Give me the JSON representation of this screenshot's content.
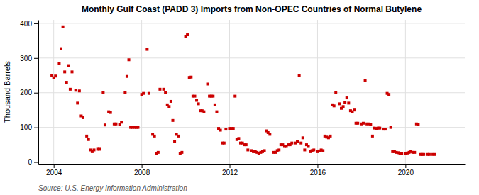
{
  "chart_data": {
    "type": "scatter",
    "title": "Monthly Gulf Coast (PADD 3) Imports from Non-OPEC Countries of Normal Butylene",
    "ylabel": "Thousand Barrels",
    "annotations": [
      "Source: U.S. Energy Information Administration"
    ],
    "color": "#CC0000",
    "marker": "square",
    "grid": true,
    "xlim": [
      2003.3,
      2022.7
    ],
    "ylim": [
      -5,
      410
    ],
    "xticks": [
      2004,
      2008,
      2012,
      2016,
      2020
    ],
    "yticks": [
      0,
      100,
      200,
      300,
      400
    ],
    "x": [
      2003.917,
      2004.0,
      2004.083,
      2004.25,
      2004.333,
      2004.417,
      2004.5,
      2004.583,
      2004.667,
      2004.75,
      2004.833,
      2005.0,
      2005.083,
      2005.167,
      2005.25,
      2005.333,
      2005.5,
      2005.583,
      2005.667,
      2005.75,
      2005.833,
      2006.0,
      2006.083,
      2006.25,
      2006.333,
      2006.5,
      2006.583,
      2006.75,
      2006.833,
      2007.0,
      2007.083,
      2007.25,
      2007.333,
      2007.417,
      2007.5,
      2007.583,
      2007.667,
      2007.75,
      2007.833,
      2008.0,
      2008.083,
      2008.25,
      2008.333,
      2008.5,
      2008.583,
      2008.667,
      2008.75,
      2008.833,
      2009.0,
      2009.083,
      2009.167,
      2009.25,
      2009.333,
      2009.417,
      2009.5,
      2009.583,
      2009.667,
      2009.75,
      2009.833,
      2010.0,
      2010.083,
      2010.167,
      2010.25,
      2010.333,
      2010.417,
      2010.5,
      2010.583,
      2010.667,
      2010.75,
      2010.833,
      2011.0,
      2011.083,
      2011.167,
      2011.25,
      2011.333,
      2011.417,
      2011.5,
      2011.583,
      2011.667,
      2011.75,
      2011.833,
      2012.0,
      2012.083,
      2012.167,
      2012.25,
      2012.333,
      2012.417,
      2012.5,
      2012.583,
      2012.667,
      2012.75,
      2012.833,
      2013.0,
      2013.083,
      2013.167,
      2013.25,
      2013.333,
      2013.417,
      2013.5,
      2013.583,
      2013.667,
      2013.75,
      2013.833,
      2014.0,
      2014.083,
      2014.167,
      2014.25,
      2014.333,
      2014.417,
      2014.5,
      2014.583,
      2014.667,
      2014.75,
      2014.833,
      2015.0,
      2015.083,
      2015.167,
      2015.25,
      2015.333,
      2015.417,
      2015.5,
      2015.583,
      2015.667,
      2015.75,
      2015.833,
      2016.0,
      2016.083,
      2016.167,
      2016.25,
      2016.333,
      2016.417,
      2016.5,
      2016.583,
      2016.667,
      2016.75,
      2016.833,
      2017.0,
      2017.083,
      2017.167,
      2017.25,
      2017.333,
      2017.417,
      2017.5,
      2017.583,
      2017.667,
      2017.75,
      2017.833,
      2018.0,
      2018.083,
      2018.167,
      2018.25,
      2018.333,
      2018.417,
      2018.5,
      2018.583,
      2018.667,
      2018.75,
      2018.833,
      2019.0,
      2019.083,
      2019.167,
      2019.25,
      2019.333,
      2019.417,
      2019.5,
      2019.583,
      2019.667,
      2019.75,
      2019.833,
      2020.0,
      2020.083,
      2020.167,
      2020.25,
      2020.333,
      2020.417,
      2020.5,
      2020.583,
      2020.667,
      2020.75,
      2020.833,
      2021.0,
      2021.083,
      2021.25,
      2021.333
    ],
    "values": [
      250,
      243,
      248,
      285,
      327,
      390,
      260,
      230,
      278,
      210,
      260,
      207,
      170,
      205,
      133,
      128,
      75,
      65,
      35,
      30,
      35,
      37,
      37,
      200,
      107,
      145,
      143,
      110,
      110,
      108,
      115,
      200,
      247,
      295,
      100,
      100,
      100,
      100,
      100,
      195,
      198,
      325,
      198,
      80,
      75,
      25,
      28,
      210,
      210,
      200,
      165,
      160,
      175,
      120,
      60,
      80,
      75,
      25,
      28,
      363,
      367,
      244,
      245,
      190,
      190,
      178,
      168,
      148,
      148,
      145,
      225,
      190,
      190,
      190,
      165,
      145,
      97,
      92,
      55,
      55,
      95,
      97,
      97,
      97,
      190,
      65,
      68,
      55,
      55,
      50,
      50,
      35,
      33,
      30,
      30,
      28,
      25,
      28,
      30,
      33,
      90,
      85,
      80,
      28,
      28,
      33,
      35,
      50,
      50,
      45,
      45,
      50,
      50,
      55,
      55,
      60,
      250,
      55,
      70,
      35,
      50,
      45,
      30,
      33,
      35,
      30,
      32,
      35,
      33,
      75,
      72,
      70,
      75,
      165,
      162,
      200,
      168,
      155,
      160,
      172,
      185,
      170,
      148,
      145,
      150,
      112,
      112,
      110,
      112,
      235,
      110,
      110,
      108,
      75,
      98,
      97,
      98,
      98,
      95,
      95,
      198,
      195,
      100,
      30,
      30,
      28,
      27,
      25,
      25,
      25,
      26,
      28,
      30,
      28,
      28,
      110,
      108,
      22,
      22,
      22,
      22,
      22,
      22,
      22
    ]
  }
}
